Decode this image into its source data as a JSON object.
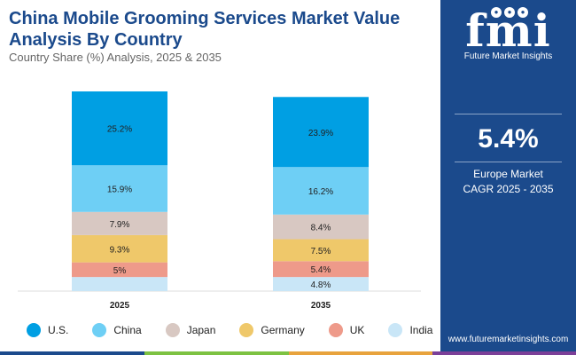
{
  "header": {
    "title": "China Mobile Grooming Services Market Value Analysis By Country",
    "subtitle": "Country Share (%) Analysis, 2025 & 2035"
  },
  "chart_data": {
    "type": "bar",
    "stacked": true,
    "categories": [
      "2025",
      "2035"
    ],
    "series": [
      {
        "name": "U.S.",
        "color": "#009fe3",
        "values": [
          25.2,
          23.9
        ]
      },
      {
        "name": "China",
        "color": "#6ecff5",
        "values": [
          15.9,
          16.2
        ]
      },
      {
        "name": "Japan",
        "color": "#d8c8c2",
        "values": [
          7.9,
          8.4
        ]
      },
      {
        "name": "Germany",
        "color": "#efc86a",
        "values": [
          9.3,
          7.5
        ]
      },
      {
        "name": "UK",
        "color": "#ee9a8a",
        "values": [
          5,
          5.4
        ]
      },
      {
        "name": "India",
        "color": "#c9e6f7",
        "values": [
          4.8,
          4.8
        ]
      }
    ],
    "data_labels": [
      [
        "25.2%",
        "15.9%",
        "7.9%",
        "9.3%",
        "5%",
        ""
      ],
      [
        "23.9%",
        "16.2%",
        "8.4%",
        "7.5%",
        "5.4%",
        "4.8%"
      ]
    ],
    "xlabel": "",
    "ylabel": "",
    "legend_position": "bottom",
    "grid": false
  },
  "legend": [
    {
      "label": "U.S.",
      "color": "#009fe3"
    },
    {
      "label": "China",
      "color": "#6ecff5"
    },
    {
      "label": "Japan",
      "color": "#d8c8c2"
    },
    {
      "label": "Germany",
      "color": "#efc86a"
    },
    {
      "label": "UK",
      "color": "#ee9a8a"
    },
    {
      "label": "India",
      "color": "#c9e6f7"
    }
  ],
  "brand": {
    "logo_text": "fmi",
    "logo_subtitle": "Future Market Insights",
    "website": "www.futuremarketinsights.com",
    "panel_color": "#1b4a8c"
  },
  "kpi": {
    "value": "5.4%",
    "label_line1": "Europe Market",
    "label_line2": "CAGR 2025 - 2035"
  },
  "bottom_bar_colors": [
    "#1b4a8c",
    "#7dc242",
    "#e8a33d",
    "#7b3f98"
  ]
}
